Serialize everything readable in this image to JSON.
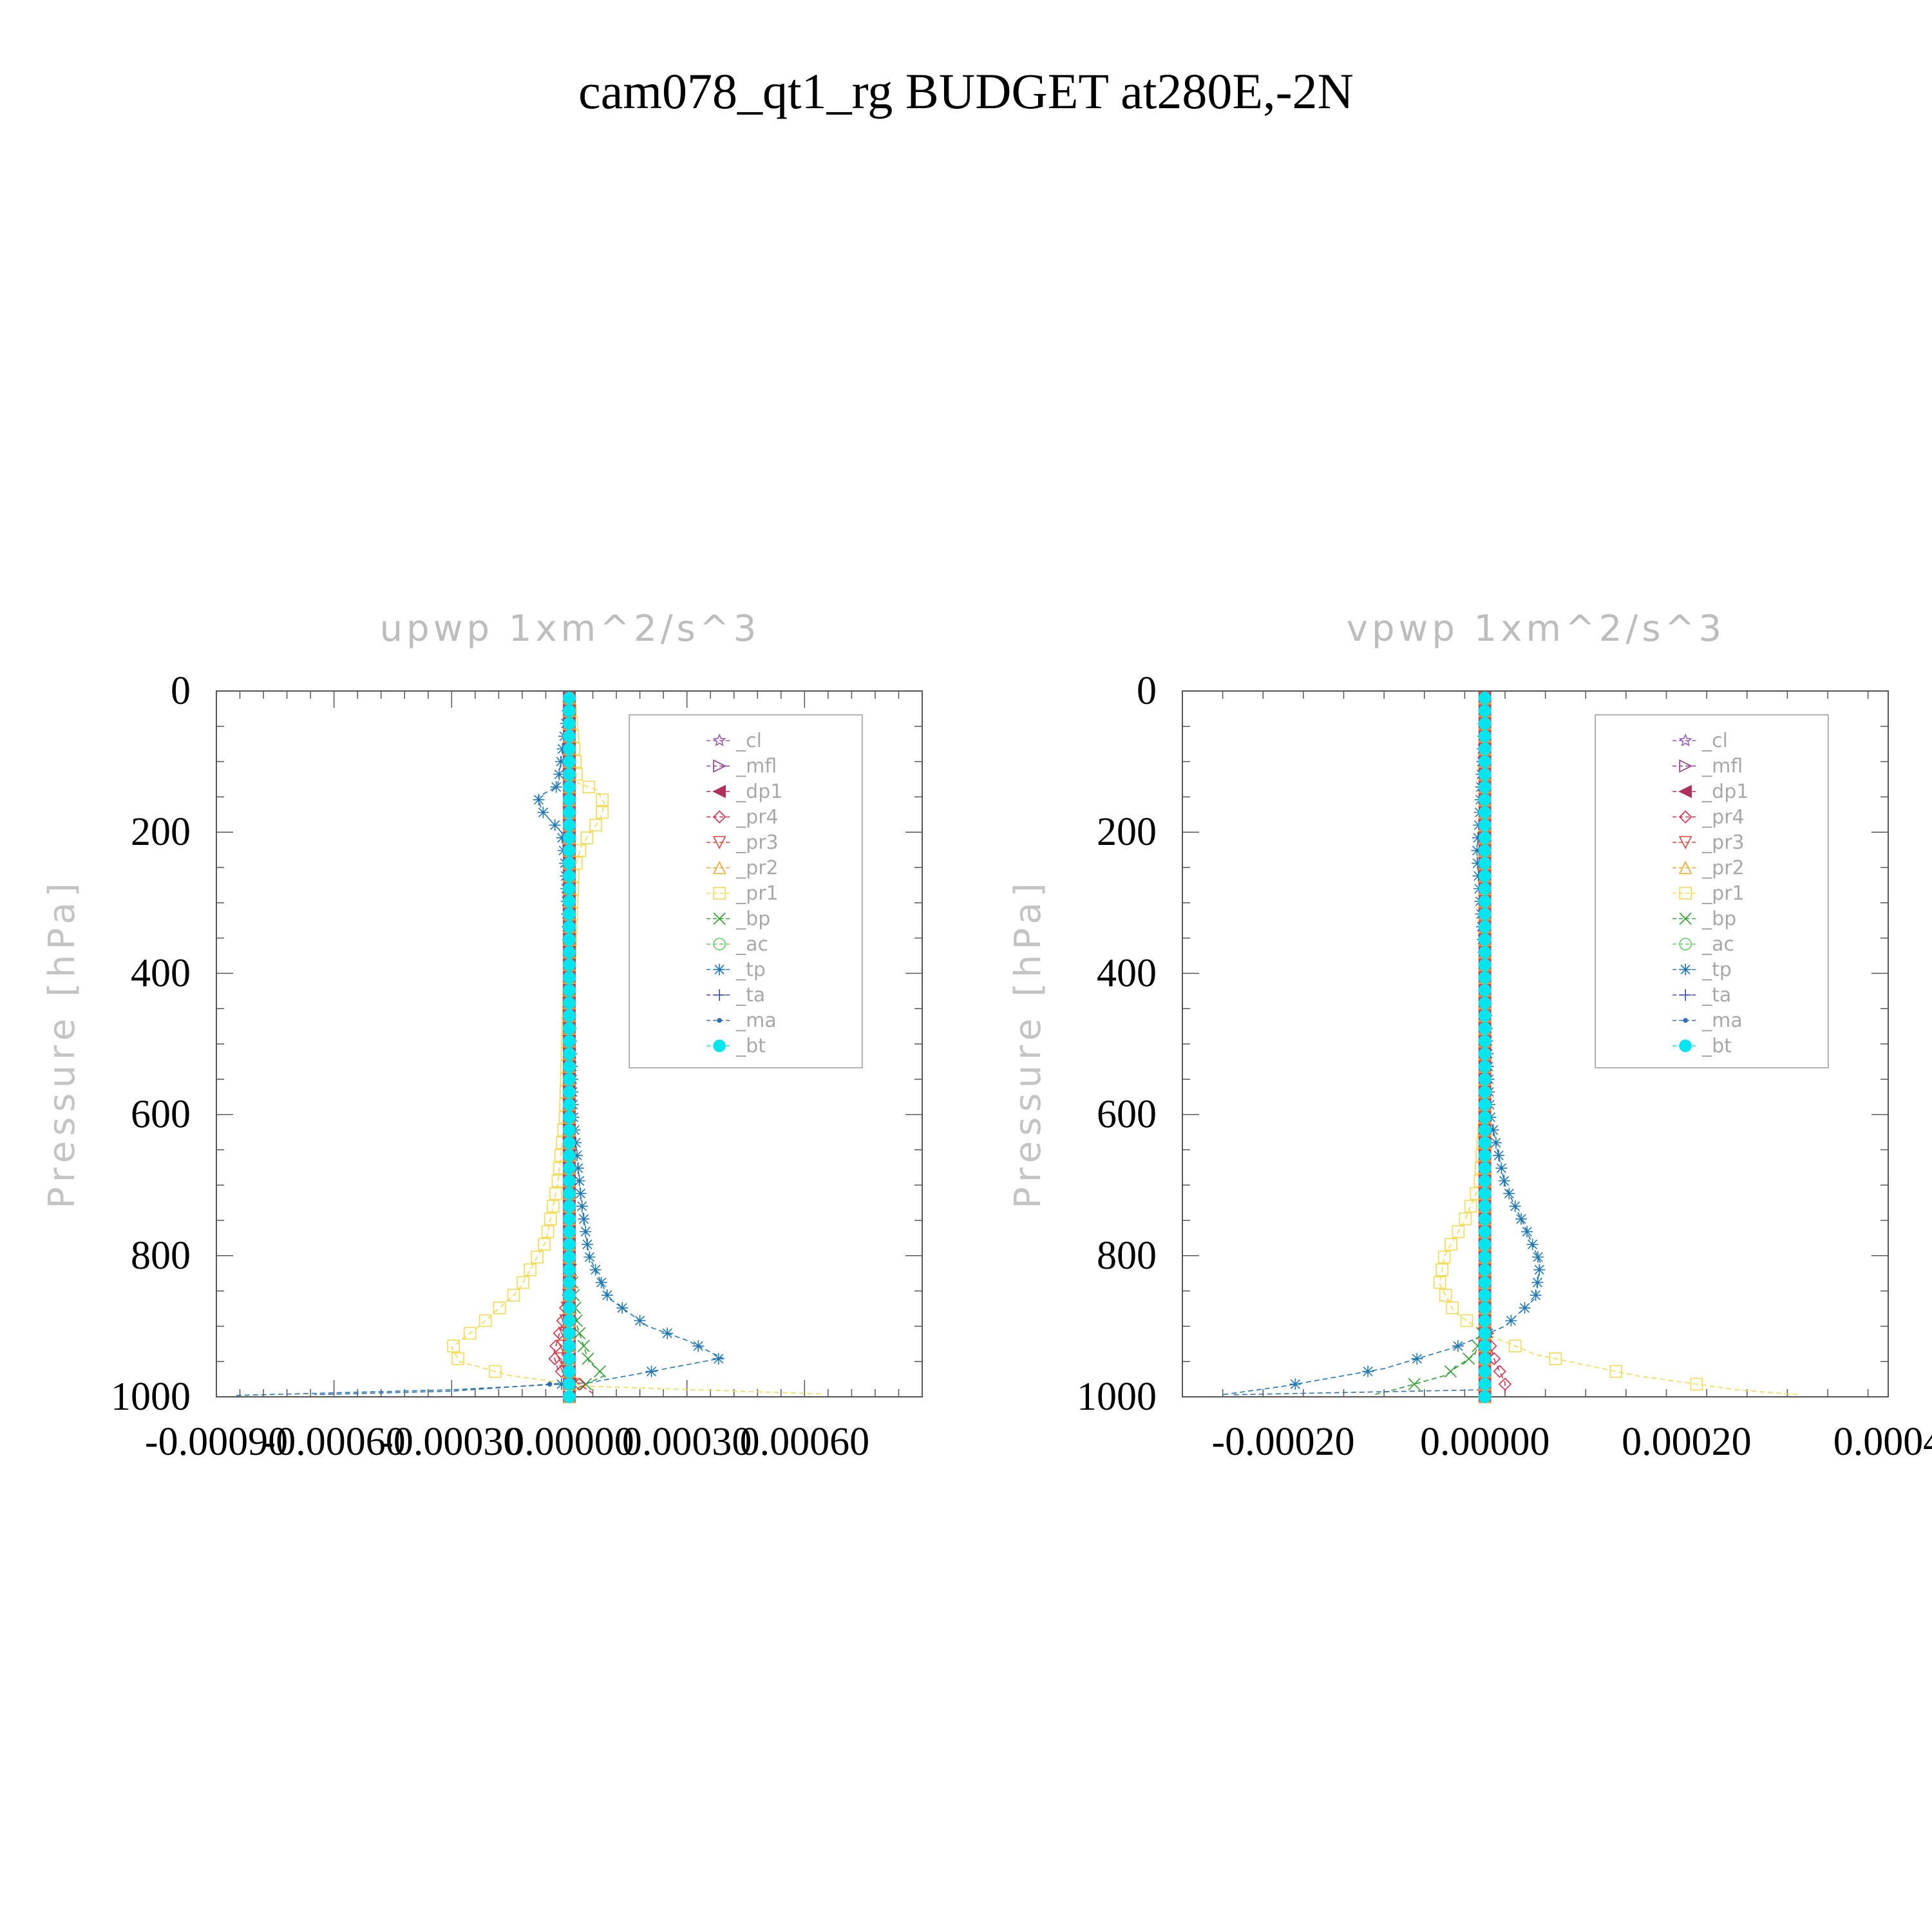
{
  "figure_title": "cam078_qt1_rg  BUDGET at280E,-2N",
  "legend_entries": [
    {
      "name": "_cl",
      "color": "#9b59b6",
      "marker": "star"
    },
    {
      "name": "_mfl",
      "color": "#8e3a8e",
      "marker": "tri-right"
    },
    {
      "name": "_dp1",
      "color": "#b0305a",
      "marker": "tri-left"
    },
    {
      "name": "_pr4",
      "color": "#d62d4b",
      "marker": "diamond"
    },
    {
      "name": "_pr3",
      "color": "#e8403a",
      "marker": "tri-down"
    },
    {
      "name": "_pr2",
      "color": "#f5a623",
      "marker": "tri-up"
    },
    {
      "name": "_pr1",
      "color": "#f7d94c",
      "marker": "square"
    },
    {
      "name": "_bp",
      "color": "#2ca02c",
      "marker": "x"
    },
    {
      "name": "_ac",
      "color": "#5fd35f",
      "marker": "circle"
    },
    {
      "name": "_tp",
      "color": "#1f77b4",
      "marker": "asterisk"
    },
    {
      "name": "_ta",
      "color": "#3949ab",
      "marker": "plus"
    },
    {
      "name": "_ma",
      "color": "#2f6fb0",
      "marker": "dot"
    },
    {
      "name": "_bt",
      "color": "#00e5ee",
      "marker": "filled-circle"
    }
  ],
  "chart_data": [
    {
      "type": "line",
      "title": "upwp   1xm^2/s^3",
      "xlabel": "",
      "ylabel": "Pressure [hPa]",
      "xlim": [
        -0.0009,
        0.0009
      ],
      "ylim": [
        1000,
        0
      ],
      "x_ticks": [
        "-0.00090",
        "-0.00060",
        "-0.00030",
        "0.00000",
        "0.00030",
        "0.00060"
      ],
      "x_tick_values": [
        -0.0009,
        -0.0006,
        -0.0003,
        0.0,
        0.0003,
        0.0006
      ],
      "y_ticks": [
        "0",
        "200",
        "400",
        "600",
        "800",
        "1000"
      ],
      "y_tick_values": [
        0,
        200,
        400,
        600,
        800,
        1000
      ],
      "legend_position": "top-right",
      "series": [
        {
          "name": "_pr1",
          "points": [
            [
              0,
              10
            ],
            [
              2e-05,
              130
            ],
            [
              7e-05,
              140
            ],
            [
              9e-05,
              160
            ],
            [
              8e-05,
              180
            ],
            [
              3e-05,
              220
            ],
            [
              1e-05,
              260
            ],
            [
              0,
              400
            ],
            [
              -1e-05,
              600
            ],
            [
              -3e-05,
              700
            ],
            [
              -6e-05,
              780
            ],
            [
              -0.00013,
              850
            ],
            [
              -0.00023,
              900
            ],
            [
              -0.0003,
              930
            ],
            [
              -0.00028,
              950
            ],
            [
              -0.00015,
              970
            ],
            [
              5e-05,
              985
            ],
            [
              0.00065,
              996
            ]
          ]
        },
        {
          "name": "_tp",
          "points": [
            [
              0,
              10
            ],
            [
              -3e-05,
              135
            ],
            [
              -8e-05,
              150
            ],
            [
              -7e-05,
              170
            ],
            [
              -2e-05,
              200
            ],
            [
              -1e-05,
              250
            ],
            [
              0,
              400
            ],
            [
              1e-05,
              600
            ],
            [
              3e-05,
              720
            ],
            [
              5e-05,
              800
            ],
            [
              0.0001,
              860
            ],
            [
              0.0002,
              900
            ],
            [
              0.0003,
              920
            ],
            [
              0.00039,
              945
            ],
            [
              0.0002,
              965
            ],
            [
              5e-05,
              980
            ],
            [
              -0.0003,
              990
            ],
            [
              -0.00085,
              998
            ]
          ]
        },
        {
          "name": "_bp",
          "points": [
            [
              0,
              10
            ],
            [
              0,
              800
            ],
            [
              2e-05,
              900
            ],
            [
              5e-05,
              950
            ],
            [
              9e-05,
              970
            ],
            [
              3e-05,
              985
            ],
            [
              0,
              995
            ]
          ]
        },
        {
          "name": "_pr4",
          "points": [
            [
              0,
              10
            ],
            [
              0,
              850
            ],
            [
              -2e-05,
              900
            ],
            [
              -4e-05,
              940
            ],
            [
              -3e-05,
              960
            ],
            [
              2e-05,
              980
            ],
            [
              6e-05,
              995
            ]
          ]
        },
        {
          "name": "_pr3",
          "points": [
            [
              0,
              10
            ],
            [
              0,
              850
            ],
            [
              -1e-05,
              900
            ],
            [
              -2e-05,
              950
            ],
            [
              1e-05,
              990
            ]
          ]
        },
        {
          "name": "_ma",
          "points": [
            [
              0,
              10
            ],
            [
              0,
              980
            ],
            [
              -0.0003,
              992
            ],
            [
              -0.00065,
              997
            ]
          ]
        },
        {
          "name": "_cl",
          "points": [
            [
              0,
              10
            ],
            [
              0,
              1000
            ]
          ]
        },
        {
          "name": "_mfl",
          "points": [
            [
              0,
              10
            ],
            [
              0,
              1000
            ]
          ]
        },
        {
          "name": "_dp1",
          "points": [
            [
              0,
              10
            ],
            [
              0,
              1000
            ]
          ]
        },
        {
          "name": "_pr2",
          "points": [
            [
              0,
              10
            ],
            [
              0,
              1000
            ]
          ]
        },
        {
          "name": "_ac",
          "points": [
            [
              0,
              10
            ],
            [
              0,
              1000
            ]
          ]
        },
        {
          "name": "_ta",
          "points": [
            [
              0,
              10
            ],
            [
              0,
              1000
            ]
          ]
        },
        {
          "name": "_bt",
          "points": [
            [
              0,
              10
            ],
            [
              0,
              1000
            ]
          ]
        }
      ]
    },
    {
      "type": "line",
      "title": "vpwp   1xm^2/s^3",
      "xlabel": "",
      "ylabel": "Pressure [hPa]",
      "xlim": [
        -0.0003,
        0.0004
      ],
      "ylim": [
        1000,
        0
      ],
      "x_ticks": [
        "-0.00020",
        "0.00000",
        "0.00020",
        "0.0004"
      ],
      "x_tick_values": [
        -0.0002,
        0.0,
        0.0002,
        0.0004
      ],
      "y_ticks": [
        "0",
        "200",
        "400",
        "600",
        "800",
        "1000"
      ],
      "y_tick_values": [
        0,
        200,
        400,
        600,
        800,
        1000
      ],
      "legend_position": "top-right",
      "series": [
        {
          "name": "_pr1",
          "points": [
            [
              0,
              10
            ],
            [
              0,
              600
            ],
            [
              -5e-06,
              700
            ],
            [
              -2e-05,
              750
            ],
            [
              -4e-05,
              800
            ],
            [
              -4.5e-05,
              840
            ],
            [
              -3e-05,
              880
            ],
            [
              0,
              910
            ],
            [
              5e-05,
              940
            ],
            [
              0.00015,
              970
            ],
            [
              0.00025,
              990
            ],
            [
              0.00031,
              997
            ]
          ]
        },
        {
          "name": "_tp",
          "points": [
            [
              0,
              10
            ],
            [
              -5e-06,
              170
            ],
            [
              -8e-06,
              230
            ],
            [
              -5e-06,
              290
            ],
            [
              0,
              400
            ],
            [
              5e-06,
              600
            ],
            [
              2e-05,
              700
            ],
            [
              4e-05,
              760
            ],
            [
              5.5e-05,
              810
            ],
            [
              5e-05,
              860
            ],
            [
              2e-05,
              900
            ],
            [
              -3e-05,
              930
            ],
            [
              -0.0001,
              960
            ],
            [
              -0.0002,
              985
            ],
            [
              -0.00026,
              997
            ]
          ]
        },
        {
          "name": "_bp",
          "points": [
            [
              0,
              10
            ],
            [
              0,
              900
            ],
            [
              -1e-05,
              940
            ],
            [
              -4e-05,
              970
            ],
            [
              -9e-05,
              990
            ],
            [
              -0.00011,
              997
            ]
          ]
        },
        {
          "name": "_pr4",
          "points": [
            [
              0,
              10
            ],
            [
              0,
              900
            ],
            [
              1e-05,
              950
            ],
            [
              2e-05,
              980
            ],
            [
              2e-05,
              995
            ]
          ]
        },
        {
          "name": "_ma",
          "points": [
            [
              0,
              10
            ],
            [
              0,
              990
            ],
            [
              -0.00025,
              997
            ]
          ]
        },
        {
          "name": "_cl",
          "points": [
            [
              0,
              10
            ],
            [
              0,
              1000
            ]
          ]
        },
        {
          "name": "_mfl",
          "points": [
            [
              0,
              10
            ],
            [
              0,
              1000
            ]
          ]
        },
        {
          "name": "_dp1",
          "points": [
            [
              0,
              10
            ],
            [
              0,
              1000
            ]
          ]
        },
        {
          "name": "_pr3",
          "points": [
            [
              0,
              10
            ],
            [
              0,
              1000
            ]
          ]
        },
        {
          "name": "_pr2",
          "points": [
            [
              0,
              10
            ],
            [
              0,
              1000
            ]
          ]
        },
        {
          "name": "_ac",
          "points": [
            [
              0,
              10
            ],
            [
              0,
              1000
            ]
          ]
        },
        {
          "name": "_ta",
          "points": [
            [
              0,
              10
            ],
            [
              0,
              1000
            ]
          ]
        },
        {
          "name": "_bt",
          "points": [
            [
              0,
              10
            ],
            [
              0,
              1000
            ]
          ]
        }
      ]
    }
  ]
}
